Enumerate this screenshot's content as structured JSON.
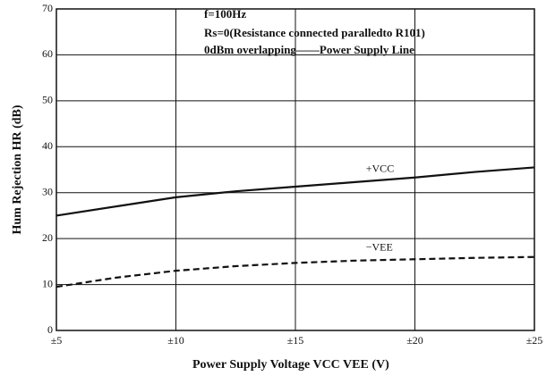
{
  "chart_data": {
    "type": "line",
    "annotations": [
      "f=100Hz",
      "Rs=0(Resistance connected paralledto R101)",
      "0dBm overlapping——Power Supply Line"
    ],
    "xlabel": "Power Supply Voltage VCC VEE (V)",
    "ylabel": "Hum Rejection  HR (dB)",
    "x": [
      5,
      7.5,
      10,
      12.5,
      15,
      17.5,
      20,
      22.5,
      25
    ],
    "series": [
      {
        "name": "+VCC",
        "color": "#111111",
        "linestyle": "solid",
        "values": [
          25,
          27,
          29,
          30.3,
          31.3,
          32.3,
          33.3,
          34.5,
          35.5
        ]
      },
      {
        "name": "−VEE",
        "color": "#111111",
        "linestyle": "dashed",
        "values": [
          9.5,
          11.5,
          13,
          14,
          14.7,
          15.2,
          15.5,
          15.8,
          16
        ]
      }
    ],
    "xlim": [
      5,
      25
    ],
    "xticks": [
      {
        "value": 5,
        "label": "±5"
      },
      {
        "value": 10,
        "label": "±10"
      },
      {
        "value": 15,
        "label": "±15"
      },
      {
        "value": 20,
        "label": "±20"
      },
      {
        "value": 25,
        "label": "±25"
      }
    ],
    "ylim": [
      0,
      70
    ],
    "yticks": [
      0,
      10,
      20,
      30,
      40,
      50,
      60,
      70
    ],
    "grid": true
  }
}
